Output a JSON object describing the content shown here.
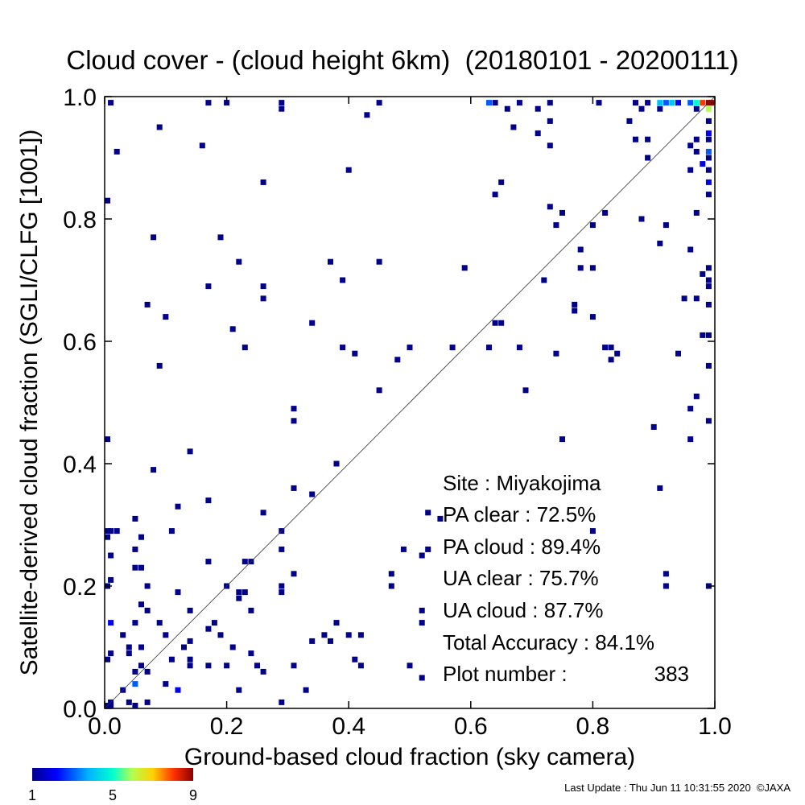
{
  "chart_data": {
    "type": "heatmap",
    "title": "Cloud cover - (cloud height 6km)  (20180101 - 20200111)",
    "xlabel": "Ground-based cloud fraction (sky camera)",
    "ylabel": "Satellite-derived cloud fraction (SGLI/CLFG [1001])",
    "xlim": [
      0.0,
      1.0
    ],
    "ylim": [
      0.0,
      1.0
    ],
    "xticks": [
      "0.0",
      "0.2",
      "0.4",
      "0.6",
      "0.8",
      "1.0"
    ],
    "yticks": [
      "0.0",
      "0.2",
      "0.4",
      "0.6",
      "0.8",
      "1.0"
    ],
    "diagonal_line": true,
    "grid": false,
    "colorbar": {
      "min": 1,
      "max": 9,
      "labels": [
        "1",
        "5",
        "9"
      ]
    },
    "points": [
      [
        0.01,
        0.99,
        1
      ],
      [
        0.17,
        0.99,
        1
      ],
      [
        0.2,
        0.99,
        1
      ],
      [
        0.29,
        0.99,
        1
      ],
      [
        0.45,
        0.99,
        1
      ],
      [
        0.63,
        0.99,
        3
      ],
      [
        0.64,
        0.99,
        1
      ],
      [
        0.68,
        0.99,
        1
      ],
      [
        0.73,
        0.99,
        1
      ],
      [
        0.81,
        0.99,
        1
      ],
      [
        0.87,
        0.99,
        1
      ],
      [
        0.89,
        0.99,
        1
      ],
      [
        0.91,
        0.99,
        4
      ],
      [
        0.92,
        0.99,
        3
      ],
      [
        0.93,
        0.99,
        4
      ],
      [
        0.94,
        0.99,
        2
      ],
      [
        0.96,
        0.99,
        3
      ],
      [
        0.97,
        0.99,
        5
      ],
      [
        0.98,
        0.99,
        8
      ],
      [
        0.99,
        0.99,
        9
      ],
      [
        1.0,
        0.99,
        9
      ],
      [
        0.29,
        0.98,
        1
      ],
      [
        0.66,
        0.98,
        1
      ],
      [
        0.71,
        0.98,
        1
      ],
      [
        0.88,
        0.98,
        1
      ],
      [
        0.91,
        0.98,
        1
      ],
      [
        0.97,
        0.98,
        1
      ],
      [
        0.99,
        0.98,
        6
      ],
      [
        0.43,
        0.97,
        1
      ],
      [
        0.73,
        0.96,
        1
      ],
      [
        0.67,
        0.95,
        1
      ],
      [
        0.86,
        0.96,
        1
      ],
      [
        0.99,
        0.96,
        1
      ],
      [
        0.09,
        0.95,
        1
      ],
      [
        0.71,
        0.94,
        1
      ],
      [
        0.99,
        0.94,
        2
      ],
      [
        0.87,
        0.93,
        1
      ],
      [
        0.89,
        0.93,
        1
      ],
      [
        0.97,
        0.93,
        1
      ],
      [
        0.99,
        0.93,
        1
      ],
      [
        0.96,
        0.92,
        1
      ],
      [
        0.16,
        0.92,
        1
      ],
      [
        0.73,
        0.92,
        1
      ],
      [
        0.97,
        0.91,
        1
      ],
      [
        0.99,
        0.91,
        3
      ],
      [
        0.02,
        0.91,
        1
      ],
      [
        0.89,
        0.9,
        1
      ],
      [
        0.99,
        0.9,
        1
      ],
      [
        0.98,
        0.89,
        2
      ],
      [
        0.99,
        0.88,
        1
      ],
      [
        0.4,
        0.88,
        1
      ],
      [
        0.96,
        0.88,
        1
      ],
      [
        0.26,
        0.86,
        1
      ],
      [
        0.65,
        0.86,
        1
      ],
      [
        0.99,
        0.86,
        2
      ],
      [
        0.64,
        0.84,
        1
      ],
      [
        0.99,
        0.84,
        1
      ],
      [
        0.0,
        0.83,
        1
      ],
      [
        0.73,
        0.82,
        1
      ],
      [
        0.75,
        0.81,
        1
      ],
      [
        0.82,
        0.81,
        1
      ],
      [
        0.97,
        0.81,
        1
      ],
      [
        0.88,
        0.8,
        1
      ],
      [
        0.74,
        0.79,
        1
      ],
      [
        0.8,
        0.79,
        1
      ],
      [
        0.92,
        0.79,
        1
      ],
      [
        0.08,
        0.77,
        1
      ],
      [
        0.19,
        0.77,
        1
      ],
      [
        0.91,
        0.76,
        1
      ],
      [
        0.78,
        0.75,
        1
      ],
      [
        0.96,
        0.75,
        1
      ],
      [
        0.22,
        0.73,
        1
      ],
      [
        0.37,
        0.73,
        1
      ],
      [
        0.45,
        0.73,
        1
      ],
      [
        0.59,
        0.72,
        1
      ],
      [
        0.78,
        0.72,
        1
      ],
      [
        0.8,
        0.72,
        1
      ],
      [
        0.99,
        0.72,
        1
      ],
      [
        0.72,
        0.7,
        1
      ],
      [
        0.17,
        0.69,
        1
      ],
      [
        0.26,
        0.69,
        1
      ],
      [
        0.39,
        0.7,
        1
      ],
      [
        0.98,
        0.71,
        1
      ],
      [
        0.99,
        0.7,
        1
      ],
      [
        0.99,
        0.69,
        1
      ],
      [
        0.07,
        0.66,
        1
      ],
      [
        0.26,
        0.67,
        1
      ],
      [
        0.77,
        0.66,
        1
      ],
      [
        0.77,
        0.65,
        1
      ],
      [
        0.95,
        0.67,
        1
      ],
      [
        0.97,
        0.67,
        1
      ],
      [
        0.99,
        0.66,
        1
      ],
      [
        0.1,
        0.64,
        1
      ],
      [
        0.8,
        0.64,
        1
      ],
      [
        0.34,
        0.63,
        1
      ],
      [
        0.64,
        0.63,
        1
      ],
      [
        0.65,
        0.63,
        1
      ],
      [
        0.21,
        0.62,
        1
      ],
      [
        0.98,
        0.61,
        1
      ],
      [
        0.99,
        0.61,
        1
      ],
      [
        0.23,
        0.59,
        1
      ],
      [
        0.39,
        0.59,
        1
      ],
      [
        0.5,
        0.59,
        1
      ],
      [
        0.57,
        0.59,
        1
      ],
      [
        0.63,
        0.59,
        1
      ],
      [
        0.68,
        0.59,
        1
      ],
      [
        0.82,
        0.59,
        1
      ],
      [
        0.83,
        0.59,
        1
      ],
      [
        0.41,
        0.58,
        1
      ],
      [
        0.74,
        0.58,
        1
      ],
      [
        0.84,
        0.58,
        1
      ],
      [
        0.94,
        0.58,
        1
      ],
      [
        0.48,
        0.57,
        1
      ],
      [
        0.83,
        0.57,
        1
      ],
      [
        0.09,
        0.56,
        1
      ],
      [
        0.99,
        0.56,
        1
      ],
      [
        0.45,
        0.52,
        1
      ],
      [
        0.69,
        0.52,
        1
      ],
      [
        0.97,
        0.51,
        1
      ],
      [
        0.31,
        0.49,
        1
      ],
      [
        0.96,
        0.49,
        1
      ],
      [
        0.31,
        0.47,
        1
      ],
      [
        0.99,
        0.47,
        1
      ],
      [
        0.9,
        0.46,
        1
      ],
      [
        0.0,
        0.44,
        1
      ],
      [
        0.75,
        0.44,
        1
      ],
      [
        0.96,
        0.44,
        1
      ],
      [
        0.14,
        0.42,
        1
      ],
      [
        0.38,
        0.4,
        1
      ],
      [
        0.08,
        0.39,
        1
      ],
      [
        0.91,
        0.36,
        1
      ],
      [
        0.31,
        0.36,
        1
      ],
      [
        0.34,
        0.35,
        1
      ],
      [
        0.17,
        0.34,
        1
      ],
      [
        0.12,
        0.33,
        1
      ],
      [
        0.26,
        0.32,
        1
      ],
      [
        0.53,
        0.32,
        1
      ],
      [
        0.05,
        0.31,
        1
      ],
      [
        0.55,
        0.31,
        1
      ],
      [
        0.0,
        0.29,
        1
      ],
      [
        0.01,
        0.29,
        1
      ],
      [
        0.02,
        0.29,
        1
      ],
      [
        0.11,
        0.29,
        1
      ],
      [
        0.29,
        0.29,
        1
      ],
      [
        0.8,
        0.29,
        1
      ],
      [
        0.0,
        0.28,
        1
      ],
      [
        0.06,
        0.28,
        1
      ],
      [
        0.05,
        0.26,
        1
      ],
      [
        0.29,
        0.26,
        1
      ],
      [
        0.49,
        0.26,
        1
      ],
      [
        0.53,
        0.26,
        1
      ],
      [
        0.01,
        0.25,
        1
      ],
      [
        0.52,
        0.25,
        1
      ],
      [
        0.17,
        0.24,
        1
      ],
      [
        0.23,
        0.24,
        1
      ],
      [
        0.24,
        0.24,
        1
      ],
      [
        0.05,
        0.23,
        1
      ],
      [
        0.06,
        0.23,
        1
      ],
      [
        0.31,
        0.22,
        1
      ],
      [
        0.47,
        0.22,
        1
      ],
      [
        0.92,
        0.22,
        1
      ],
      [
        0.01,
        0.21,
        1
      ],
      [
        0.47,
        0.2,
        1
      ],
      [
        0.92,
        0.2,
        1
      ],
      [
        0.99,
        0.2,
        1
      ],
      [
        0.0,
        0.2,
        1
      ],
      [
        0.07,
        0.2,
        1
      ],
      [
        0.2,
        0.2,
        1
      ],
      [
        0.29,
        0.2,
        1
      ],
      [
        0.12,
        0.19,
        1
      ],
      [
        0.22,
        0.19,
        1
      ],
      [
        0.23,
        0.19,
        1
      ],
      [
        0.29,
        0.19,
        1
      ],
      [
        0.22,
        0.18,
        1
      ],
      [
        0.06,
        0.17,
        1
      ],
      [
        0.07,
        0.16,
        1
      ],
      [
        0.14,
        0.16,
        1
      ],
      [
        0.24,
        0.16,
        1
      ],
      [
        0.52,
        0.16,
        1
      ],
      [
        0.01,
        0.14,
        2
      ],
      [
        0.05,
        0.14,
        1
      ],
      [
        0.09,
        0.14,
        1
      ],
      [
        0.18,
        0.14,
        1
      ],
      [
        0.38,
        0.14,
        1
      ],
      [
        0.52,
        0.14,
        1
      ],
      [
        0.17,
        0.13,
        1
      ],
      [
        0.03,
        0.12,
        1
      ],
      [
        0.1,
        0.12,
        1
      ],
      [
        0.19,
        0.12,
        1
      ],
      [
        0.36,
        0.12,
        1
      ],
      [
        0.4,
        0.12,
        1
      ],
      [
        0.42,
        0.12,
        1
      ],
      [
        0.14,
        0.11,
        1
      ],
      [
        0.34,
        0.11,
        1
      ],
      [
        0.37,
        0.11,
        1
      ],
      [
        0.06,
        0.1,
        1
      ],
      [
        0.04,
        0.1,
        1
      ],
      [
        0.13,
        0.1,
        1
      ],
      [
        0.21,
        0.1,
        1
      ],
      [
        0.01,
        0.09,
        1
      ],
      [
        0.04,
        0.09,
        1
      ],
      [
        0.24,
        0.09,
        1
      ],
      [
        0.0,
        0.08,
        1
      ],
      [
        0.11,
        0.08,
        1
      ],
      [
        0.14,
        0.08,
        1
      ],
      [
        0.41,
        0.08,
        1
      ],
      [
        0.06,
        0.07,
        1
      ],
      [
        0.14,
        0.07,
        1
      ],
      [
        0.17,
        0.07,
        1
      ],
      [
        0.2,
        0.07,
        1
      ],
      [
        0.25,
        0.07,
        1
      ],
      [
        0.31,
        0.07,
        1
      ],
      [
        0.42,
        0.07,
        1
      ],
      [
        0.5,
        0.07,
        1
      ],
      [
        0.05,
        0.06,
        1
      ],
      [
        0.26,
        0.06,
        1
      ],
      [
        0.07,
        0.06,
        1
      ],
      [
        0.52,
        0.05,
        1
      ],
      [
        0.1,
        0.04,
        1
      ],
      [
        0.05,
        0.04,
        3
      ],
      [
        0.03,
        0.03,
        1
      ],
      [
        0.12,
        0.03,
        2
      ],
      [
        0.22,
        0.03,
        1
      ],
      [
        0.33,
        0.03,
        1
      ],
      [
        0.01,
        0.01,
        1
      ],
      [
        0.07,
        0.01,
        1
      ],
      [
        0.29,
        0.01,
        1
      ],
      [
        0.04,
        0.01,
        1
      ],
      [
        0.0,
        0.0,
        1
      ],
      [
        0.01,
        0.0,
        1
      ],
      [
        0.05,
        0.0,
        1
      ]
    ]
  },
  "stats": {
    "site": "Site : Miyakojima",
    "pa_clear": "PA clear :  72.5%",
    "pa_cloud": "PA cloud :  89.4%",
    "ua_clear": "UA clear :  75.7%",
    "ua_cloud": "UA cloud :  87.7%",
    "total_accuracy": "Total Accuracy :  84.1%",
    "plot_number_label": "Plot number :",
    "plot_number_value": "383"
  },
  "footer": "Last Update : Thu Jun 11 10:31:55 2020  ©JAXA"
}
